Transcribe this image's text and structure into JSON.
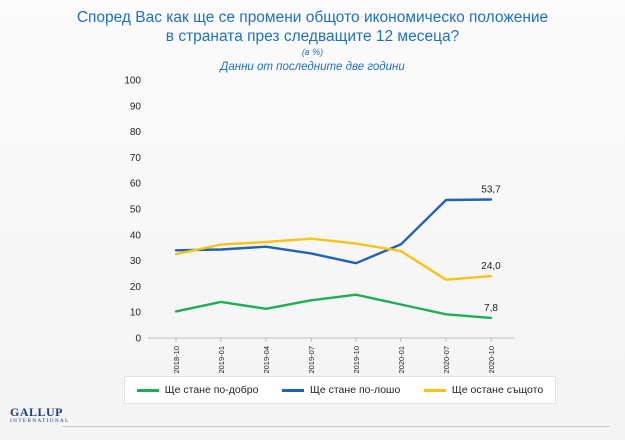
{
  "title_line1": "Според Вас как ще се промени общото икономическо положение",
  "title_line2": "в страната през следващите 12 месеца?",
  "subtitle": "(в %)",
  "note": "Данни от последните две години",
  "logo_main": "GALLUP",
  "logo_sub": "INTERNATIONAL",
  "chart_data": {
    "type": "line",
    "title": "Според Вас как ще се промени общото икономическо положение в страната през следващите 12 месеца?",
    "xlabel": "",
    "ylabel": "",
    "ylim": [
      0,
      100
    ],
    "yticks": [
      0,
      10,
      20,
      30,
      40,
      50,
      60,
      70,
      80,
      90,
      100
    ],
    "grid": false,
    "legend_position": "bottom",
    "categories": [
      "2018-10",
      "2019-01",
      "2019-04",
      "2019-07",
      "2019-10",
      "2020-01",
      "2020-07",
      "2020-10"
    ],
    "series": [
      {
        "name": "Ще стане по-добро",
        "color": "#1fae55",
        "values": [
          10.3,
          14.0,
          11.3,
          14.6,
          16.8,
          13.0,
          9.2,
          7.8
        ],
        "end_label": "7,8"
      },
      {
        "name": "Ще стане по-лошо",
        "color": "#1f64b3",
        "values": [
          34.0,
          34.3,
          35.4,
          32.8,
          29.0,
          36.3,
          53.5,
          53.7
        ],
        "end_label": "53,7"
      },
      {
        "name": "Ще остане същото",
        "color": "#f7c316",
        "values": [
          32.5,
          36.2,
          37.2,
          38.5,
          36.6,
          33.7,
          22.6,
          24.0
        ],
        "end_label": "24,0"
      }
    ]
  }
}
